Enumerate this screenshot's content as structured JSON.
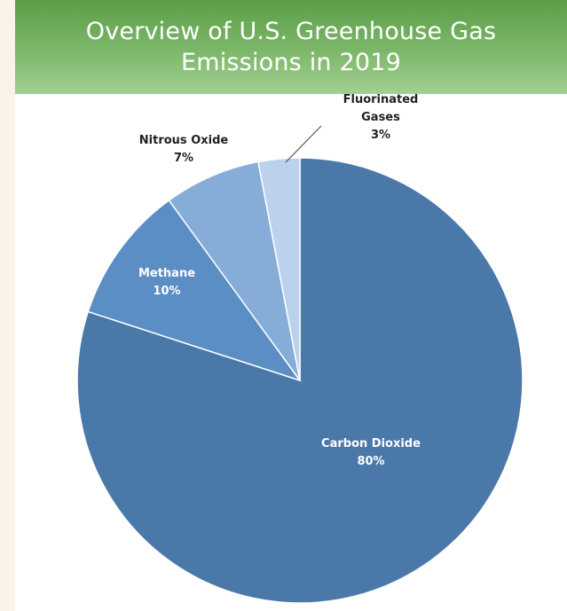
{
  "chart_data": {
    "type": "pie",
    "title": "Overview of U.S. Greenhouse Gas\nEmissions in 2019",
    "start_angle_deg": 0,
    "direction": "clockwise",
    "legend": "none",
    "slices": [
      {
        "name": "Carbon Dioxide",
        "value": 80,
        "value_label": "80%",
        "color": "#4a78a8",
        "label_color": "#ffffff"
      },
      {
        "name": "Methane",
        "value": 10,
        "value_label": "10%",
        "color": "#5b8ec4",
        "label_color": "#ffffff"
      },
      {
        "name": "Nitrous Oxide",
        "value": 7,
        "value_label": "7%",
        "color": "#86acd8",
        "label_color": "#222222"
      },
      {
        "name": "Fluorinated\nGases",
        "value": 3,
        "value_label": "3%",
        "color": "#bcd2ec",
        "label_color": "#222222"
      }
    ]
  }
}
